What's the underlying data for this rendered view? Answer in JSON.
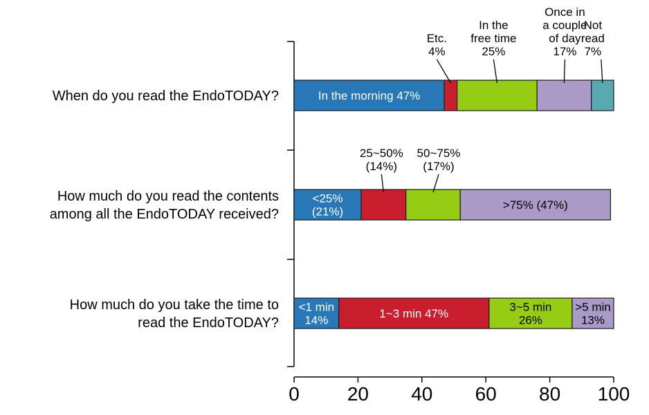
{
  "chart_data": {
    "type": "bar",
    "orientation": "horizontal",
    "stacked": true,
    "title": "",
    "xlabel": "",
    "ylabel": "",
    "xlim": [
      0,
      100
    ],
    "xticks": [
      "0",
      "20",
      "40",
      "60",
      "80",
      "100"
    ],
    "grid": false,
    "legend": "none",
    "rows": [
      {
        "question": [
          "When do you read the EndoTODAY?"
        ],
        "segments": [
          {
            "label": [
              "In the morning 47%"
            ],
            "value": 47,
            "color": "#2878b8",
            "text_color": "#ffffff",
            "label_position": "inside"
          },
          {
            "label": [
              "Etc.",
              "4%"
            ],
            "value": 4,
            "color": "#c81e2e",
            "text_color": "#000000",
            "label_position": "above"
          },
          {
            "label": [
              "In the",
              "free time",
              "25%"
            ],
            "value": 25,
            "color": "#96cc14",
            "text_color": "#000000",
            "label_position": "above"
          },
          {
            "label": [
              "Once in",
              "a couple",
              "of day",
              "17%"
            ],
            "value": 17,
            "color": "#aa9ac8",
            "text_color": "#000000",
            "label_position": "above"
          },
          {
            "label": [
              "Not",
              "read",
              "7%"
            ],
            "value": 7,
            "color": "#5aa8b0",
            "text_color": "#000000",
            "label_position": "above"
          }
        ]
      },
      {
        "question": [
          "How much do you read the contents",
          "among all the EndoTODAY received?"
        ],
        "segments": [
          {
            "label": [
              "<25%",
              "(21%)"
            ],
            "value": 21,
            "color": "#2878b8",
            "text_color": "#ffffff",
            "label_position": "inside"
          },
          {
            "label": [
              "25~50%",
              "(14%)"
            ],
            "value": 14,
            "color": "#c81e2e",
            "text_color": "#000000",
            "label_position": "above"
          },
          {
            "label": [
              "50~75%",
              "(17%)"
            ],
            "value": 17,
            "color": "#96cc14",
            "text_color": "#000000",
            "label_position": "above"
          },
          {
            "label": [
              ">75% (47%)"
            ],
            "value": 47,
            "color": "#aa9ac8",
            "text_color": "#000000",
            "label_position": "inside"
          }
        ]
      },
      {
        "question": [
          "How much do you take the time to",
          "read the EndoTODAY?"
        ],
        "segments": [
          {
            "label": [
              "<1 min",
              "14%"
            ],
            "value": 14,
            "color": "#2878b8",
            "text_color": "#ffffff",
            "label_position": "inside"
          },
          {
            "label": [
              "1~3 min 47%"
            ],
            "value": 47,
            "color": "#c81e2e",
            "text_color": "#ffffff",
            "label_position": "inside"
          },
          {
            "label": [
              "3~5 min",
              "26%"
            ],
            "value": 26,
            "color": "#96cc14",
            "text_color": "#000000",
            "label_position": "inside"
          },
          {
            "label": [
              ">5 min",
              "13%"
            ],
            "value": 13,
            "color": "#aa9ac8",
            "text_color": "#000000",
            "label_position": "inside"
          }
        ]
      }
    ]
  }
}
